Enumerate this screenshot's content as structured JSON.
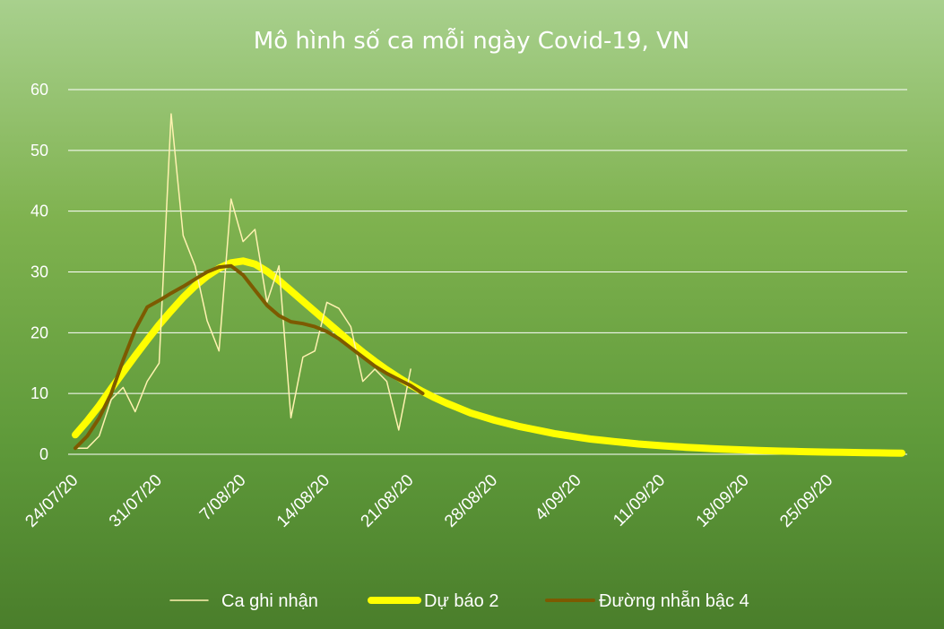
{
  "chart_data": {
    "type": "line",
    "title": "Mô hình số ca mỗi ngày Covid-19, VN",
    "xlabel": "",
    "ylabel": "",
    "ylim": [
      0,
      60
    ],
    "yticks": [
      0,
      10,
      20,
      30,
      40,
      50,
      60
    ],
    "x_start": "24/07/20",
    "x_end": "30/09/20",
    "xtick_labels": [
      "24/07/20",
      "31/07/20",
      "7/08/20",
      "14/08/20",
      "21/08/20",
      "28/08/20",
      "4/09/20",
      "11/09/20",
      "18/09/20",
      "25/09/20"
    ],
    "grid": true,
    "legend_position": "bottom",
    "series": [
      {
        "name": "Ca ghi nhận",
        "color": "#fff2b0",
        "values": [
          1,
          1,
          3,
          9,
          11,
          7,
          12,
          15,
          56,
          36,
          31,
          22,
          17,
          42,
          35,
          37,
          25,
          31,
          6,
          16,
          17,
          25,
          24,
          21,
          12,
          14,
          12,
          4,
          14
        ]
      },
      {
        "name": "Dự báo 2",
        "color": "#ffff00",
        "values": [
          3.2,
          5.5,
          8,
          10.8,
          13.5,
          16.2,
          18.8,
          21.3,
          23.6,
          25.8,
          27.7,
          29.3,
          30.6,
          31.5,
          31.8,
          31.3,
          30.1,
          28.6,
          26.9,
          25.2,
          23.5,
          21.8,
          20.1,
          18.4,
          16.8,
          15.3,
          13.9,
          12.6,
          11.4,
          10.3,
          9.3,
          8.4,
          7.6,
          6.8,
          6.2,
          5.6,
          5.1,
          4.6,
          4.2,
          3.8,
          3.4,
          3.1,
          2.8,
          2.5,
          2.3,
          2.1,
          1.9,
          1.7,
          1.55,
          1.4,
          1.27,
          1.15,
          1.05,
          0.95,
          0.86,
          0.78,
          0.7,
          0.63,
          0.57,
          0.52,
          0.47,
          0.43,
          0.39,
          0.35,
          0.32,
          0.29,
          0.26,
          0.24,
          0.21,
          0.19
        ]
      },
      {
        "name": "Đường nhẵn bậc 4",
        "color": "#7d5a00",
        "values": [
          1,
          3,
          6,
          10,
          15.5,
          20.5,
          24.2,
          25.3,
          26.5,
          27.6,
          28.8,
          30,
          30.8,
          31,
          29.5,
          27,
          24.5,
          22.8,
          21.8,
          21.5,
          21,
          20.2,
          19,
          17.5,
          16,
          14.5,
          13.3,
          12.3,
          11.3,
          10
        ]
      }
    ]
  }
}
